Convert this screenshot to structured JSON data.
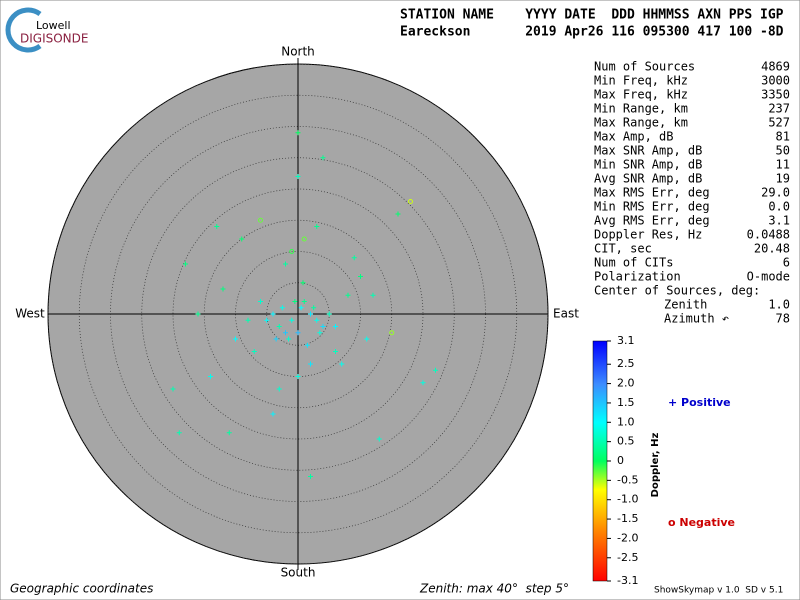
{
  "logo": {
    "top": "Lowell",
    "bottom": "DIGISONDE"
  },
  "header": {
    "line1": "STATION NAME    YYYY DATE  DDD HHMMSS AXN PPS IGP",
    "line2": "Eareckson       2019 Apr26 116 095300 417 100 -8D"
  },
  "stats": {
    "rows": [
      [
        "Num of Sources",
        "4869"
      ],
      [
        "Min Freq, kHz",
        "3000"
      ],
      [
        "Max Freq, kHz",
        "3350"
      ],
      [
        "Min Range, km",
        "237"
      ],
      [
        "Max Range, km",
        "527"
      ],
      [
        "Max Amp, dB",
        "81"
      ],
      [
        "Max SNR Amp, dB",
        "50"
      ],
      [
        "Min SNR Amp, dB",
        "11"
      ],
      [
        "Avg SNR Amp, dB",
        "19"
      ],
      [
        "Max RMS Err, deg",
        "29.0"
      ],
      [
        "Min RMS Err, deg",
        "0.0"
      ],
      [
        "Avg RMS Err, deg",
        "3.1"
      ],
      [
        "Doppler Res, Hz",
        "0.0488"
      ],
      [
        "CIT, sec",
        "20.48"
      ],
      [
        "Num of CITs",
        "6"
      ],
      [
        "Polarization",
        "O-mode"
      ]
    ],
    "center_title": "Center of Sources, deg:",
    "center_rows": [
      [
        "Zenith",
        "1.0"
      ],
      [
        "Azimuth ↶",
        "78"
      ]
    ]
  },
  "legend": {
    "positive": "+ Positive",
    "negative": "o Negative"
  },
  "footer": {
    "left": "Geographic coordinates",
    "middle": "Zenith: max 40°  step 5°",
    "right": "ShowSkymap v 1.0  SD v 5.1"
  },
  "chart_data": {
    "type": "scatter",
    "directions": {
      "north": "North",
      "south": "South",
      "east": "East",
      "west": "West"
    },
    "xlim": [
      -40,
      40
    ],
    "ylim": [
      -40,
      40
    ],
    "rticks": [
      5,
      10,
      15,
      20,
      25,
      30,
      35,
      40
    ],
    "x": [
      -1,
      2,
      -3,
      0.5,
      -2,
      3,
      1,
      -4,
      4,
      -1.5,
      0,
      2.5,
      -2.5,
      1.5,
      -0.5,
      5,
      -5,
      3.5,
      -3.5,
      0.8,
      -6,
      6,
      -8,
      8,
      -10,
      10,
      -7,
      7,
      1,
      -2,
      2,
      -1,
      0,
      3,
      -3,
      12,
      -12,
      15,
      -14,
      9,
      -9,
      0,
      0,
      -16,
      20,
      -20,
      18,
      -18,
      22,
      -11,
      13,
      4,
      -4,
      -19,
      16,
      -13,
      11,
      6,
      -6,
      2
    ],
    "y": [
      -1,
      0,
      -2,
      1,
      -3,
      -1,
      2,
      0,
      -2,
      -4,
      -3,
      1,
      1,
      -5,
      2,
      0,
      -1,
      -3,
      -4,
      5,
      2,
      -2,
      -1,
      3,
      -4,
      6,
      -6,
      -8,
      12,
      8,
      -8,
      10,
      -10,
      14,
      -12,
      3,
      4,
      -3,
      -10,
      9,
      12,
      22,
      29,
      0,
      -11,
      -12,
      18,
      8,
      -9,
      -19,
      -20,
      25,
      -16,
      -19,
      16,
      14,
      -4,
      -6,
      15,
      -26
    ],
    "doppler": [
      0.8,
      1.2,
      0.5,
      1.0,
      1.5,
      0.9,
      0.3,
      1.1,
      1.3,
      0.7,
      1.6,
      0.4,
      0.9,
      1.2,
      0.2,
      0.6,
      1.0,
      0.8,
      1.4,
      0.1,
      0.7,
      1.1,
      0.5,
      0.3,
      1.0,
      0.2,
      0.6,
      0.9,
      -0.2,
      0.4,
      1.2,
      -0.1,
      0.8,
      0.3,
      0.7,
      0.5,
      0.2,
      -0.3,
      0.9,
      0.4,
      0.1,
      0.6,
      0.0,
      0.3,
      0.8,
      0.5,
      -0.4,
      0.2,
      0.6,
      0.4,
      0.7,
      0.3,
      1.1,
      0.5,
      0.1,
      0.3,
      0.9,
      0.6,
      -0.2,
      0.4
    ],
    "colorbar_label": "Doppler, Hz",
    "clim": [
      -3.1,
      3.1
    ],
    "cticks": [
      3.1,
      2.5,
      {
        "value": 2,
        "label": "2.0"
      },
      1.5,
      {
        "value": 1,
        "label": "1.0"
      },
      0.5,
      0,
      -0.5,
      {
        "value": -1,
        "label": "-1.0"
      },
      -1.5,
      {
        "value": -2,
        "label": "-2.0"
      },
      -2.5,
      -3.1
    ]
  }
}
